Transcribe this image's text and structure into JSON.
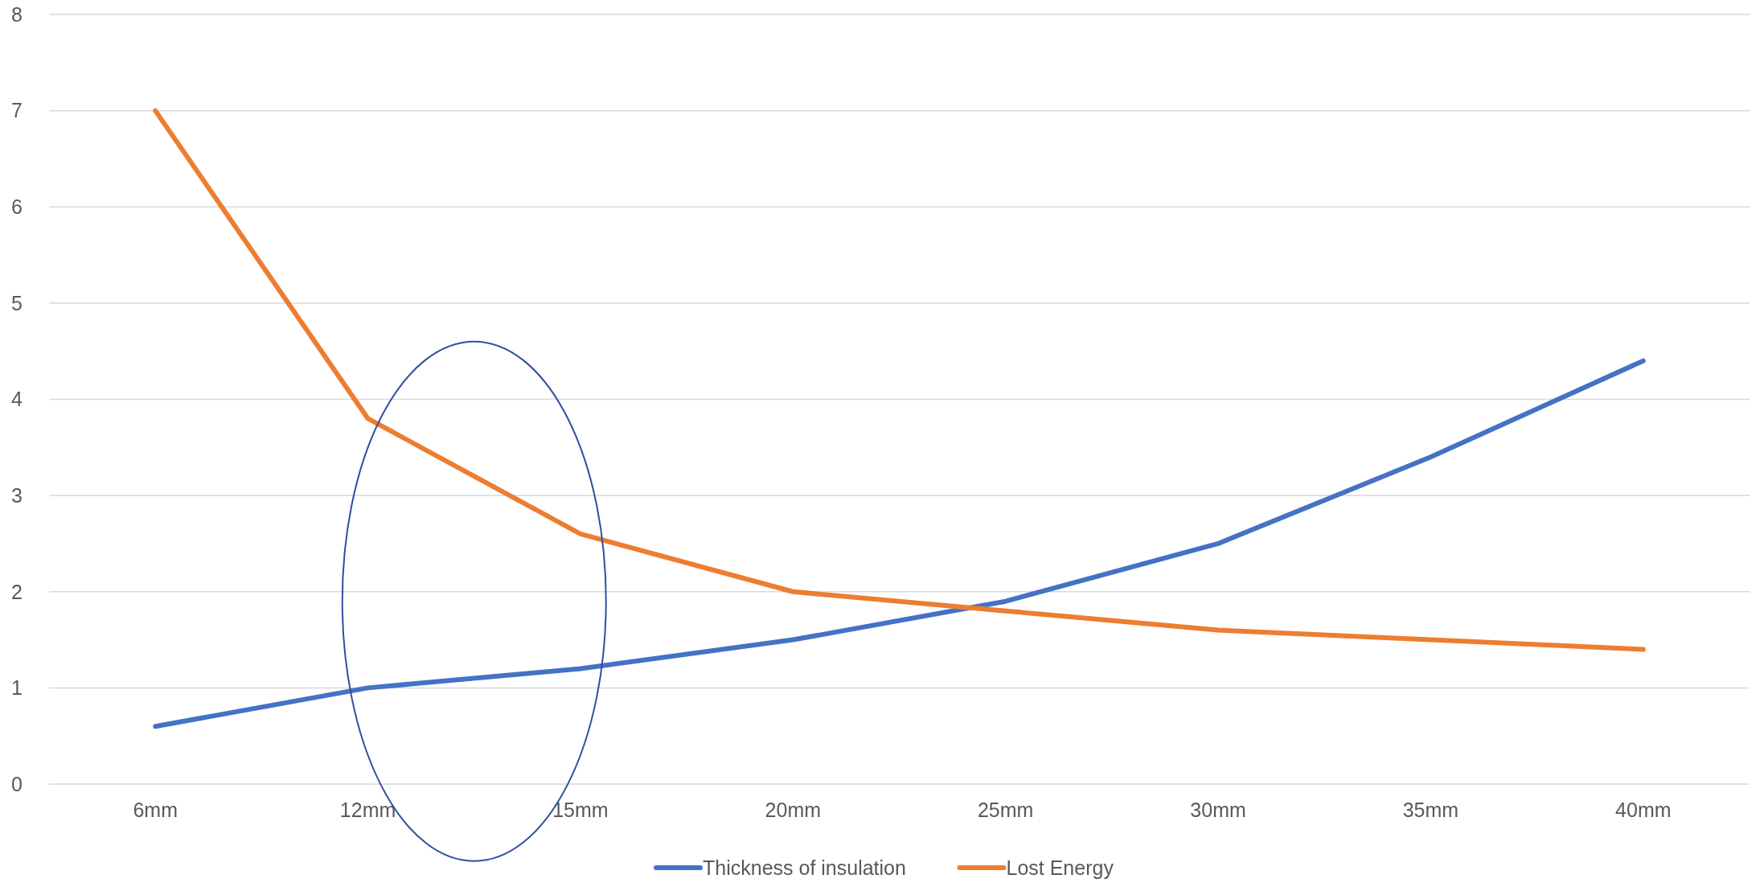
{
  "chart_data": {
    "type": "line",
    "categories": [
      "6mm",
      "12mm",
      "15mm",
      "20mm",
      "25mm",
      "30mm",
      "35mm",
      "40mm"
    ],
    "series": [
      {
        "name": "Thickness of insulation",
        "color": "#4472c4",
        "values": [
          0.6,
          1.0,
          1.2,
          1.5,
          1.9,
          2.5,
          3.4,
          4.4
        ]
      },
      {
        "name": "Lost Energy",
        "color": "#ed7d31",
        "values": [
          7,
          3.8,
          2.6,
          2.0,
          1.8,
          1.6,
          1.5,
          1.4
        ]
      }
    ],
    "ylim": [
      0,
      8
    ],
    "yticks": [
      0,
      1,
      2,
      3,
      4,
      5,
      6,
      7,
      8
    ],
    "grid": "y",
    "legend": "bottom",
    "marker": "none",
    "line_style": "solid"
  }
}
